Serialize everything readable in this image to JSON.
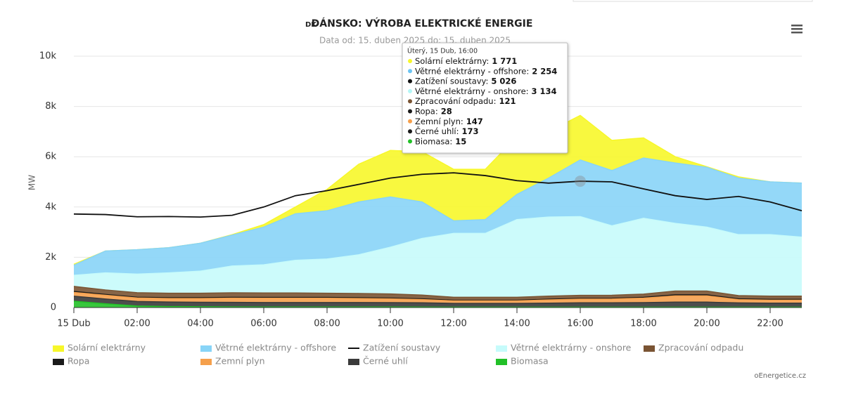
{
  "chart_data": {
    "type": "stacked_area",
    "title_prefix": "DK",
    "title": "DÁNSKO: VÝROBA ELEKTRICKÉ ENERGIE",
    "subtitle": "Data od: 15. duben 2025 do: 15. duben 2025",
    "y_label": "MW",
    "credit": "oEnergetice.cz",
    "x": [
      0,
      1,
      2,
      3,
      4,
      5,
      6,
      7,
      8,
      9,
      10,
      11,
      12,
      13,
      14,
      15,
      16,
      17,
      18,
      19,
      20,
      21,
      22,
      23
    ],
    "xlim": [
      0,
      23
    ],
    "xticks": [
      {
        "value": 0,
        "label": "15 Dub"
      },
      {
        "value": 2,
        "label": "02:00"
      },
      {
        "value": 4,
        "label": "04:00"
      },
      {
        "value": 6,
        "label": "06:00"
      },
      {
        "value": 8,
        "label": "08:00"
      },
      {
        "value": 10,
        "label": "10:00"
      },
      {
        "value": 12,
        "label": "12:00"
      },
      {
        "value": 14,
        "label": "14:00"
      },
      {
        "value": 16,
        "label": "16:00"
      },
      {
        "value": 18,
        "label": "18:00"
      },
      {
        "value": 20,
        "label": "20:00"
      },
      {
        "value": 22,
        "label": "22:00"
      }
    ],
    "ylim": [
      0,
      10000
    ],
    "yticks": [
      0,
      {
        "value": 2000,
        "label": "2k"
      },
      {
        "value": 4000,
        "label": "4k"
      },
      {
        "value": 6000,
        "label": "6k"
      },
      {
        "value": 8000,
        "label": "8k"
      },
      {
        "value": 10000,
        "label": "10k"
      }
    ],
    "grid": true,
    "series": [
      {
        "name": "Solární elektrárny",
        "kind": "area",
        "color": "#f7f72a",
        "values": [
          40,
          0,
          0,
          0,
          0,
          20,
          100,
          270,
          850,
          1500,
          1850,
          2000,
          2050,
          2000,
          2300,
          1850,
          1771,
          1200,
          800,
          250,
          20,
          50,
          0,
          0
        ]
      },
      {
        "name": "Větrné elektrárny - offshore",
        "kind": "area",
        "color": "#88d4f7",
        "values": [
          400,
          870,
          970,
          1000,
          1110,
          1230,
          1500,
          1850,
          1920,
          2100,
          2000,
          1450,
          500,
          550,
          1000,
          1550,
          2254,
          2200,
          2400,
          2400,
          2380,
          2250,
          2100,
          2150
        ]
      },
      {
        "name": "Zatížení soustavy",
        "kind": "line",
        "color": "#111111",
        "values": [
          3720,
          3700,
          3610,
          3620,
          3600,
          3670,
          4000,
          4450,
          4650,
          4900,
          5150,
          5300,
          5360,
          5250,
          5050,
          4950,
          5026,
          5000,
          4720,
          4450,
          4300,
          4420,
          4200,
          3850
        ]
      },
      {
        "name": "Větrné elektrárny - onshore",
        "kind": "area",
        "color": "#c6fbfb",
        "values": [
          440,
          680,
          740,
          810,
          880,
          1065,
          1120,
          1300,
          1360,
          1540,
          1860,
          2254,
          2540,
          2540,
          3090,
          3147,
          3134,
          2761,
          3015,
          2695,
          2545,
          2425,
          2445,
          2345
        ]
      },
      {
        "name": "Zpracování odpadu",
        "kind": "area",
        "color": "#7a5433",
        "values": [
          200,
          180,
          180,
          180,
          180,
          180,
          180,
          180,
          170,
          170,
          165,
          150,
          120,
          120,
          120,
          120,
          121,
          121,
          130,
          150,
          150,
          130,
          130,
          130
        ]
      },
      {
        "name": "Ropa",
        "kind": "area",
        "color": "#1a1a1a",
        "values": [
          40,
          30,
          30,
          30,
          30,
          30,
          30,
          30,
          30,
          30,
          30,
          28,
          25,
          25,
          25,
          28,
          28,
          28,
          30,
          40,
          40,
          30,
          30,
          30
        ]
      },
      {
        "name": "Zemní plyn",
        "kind": "area",
        "color": "#f5a04c",
        "values": [
          150,
          150,
          140,
          140,
          150,
          170,
          170,
          170,
          170,
          160,
          150,
          130,
          100,
          100,
          100,
          130,
          147,
          150,
          180,
          250,
          250,
          130,
          120,
          120
        ]
      },
      {
        "name": "Černé uhlí",
        "kind": "area",
        "color": "#3a3a3a",
        "values": [
          200,
          190,
          180,
          180,
          180,
          180,
          180,
          180,
          180,
          180,
          175,
          170,
          150,
          150,
          150,
          160,
          173,
          175,
          180,
          200,
          200,
          170,
          160,
          160
        ]
      },
      {
        "name": "Biomasa",
        "kind": "area",
        "color": "#22c028",
        "values": [
          250,
          150,
          60,
          40,
          30,
          25,
          20,
          20,
          20,
          20,
          20,
          18,
          15,
          15,
          15,
          15,
          15,
          15,
          15,
          15,
          15,
          15,
          15,
          15
        ]
      }
    ],
    "tooltip": {
      "title": "Úterý, 15 Dub, 16:00",
      "items": [
        {
          "name": "Solární elektrárny",
          "color": "#f7f72a",
          "value": 1771,
          "label": "1 771"
        },
        {
          "name": "Větrné elektrárny - offshore",
          "color": "#6cc4f2",
          "value": 2254,
          "label": "2 254"
        },
        {
          "name": "Zatížení soustavy",
          "color": "#111111",
          "value": 5026,
          "label": "5 026"
        },
        {
          "name": "Větrné elektrárny - onshore",
          "color": "#b4f6f6",
          "value": 3134,
          "label": "3 134"
        },
        {
          "name": "Zpracování odpadu",
          "color": "#7a5433",
          "value": 121,
          "label": "121"
        },
        {
          "name": "Ropa",
          "color": "#1a1a1a",
          "value": 28,
          "label": "28"
        },
        {
          "name": "Zemní plyn",
          "color": "#f5a04c",
          "value": 147,
          "label": "147"
        },
        {
          "name": "Černé uhlí",
          "color": "#1a1a1a",
          "value": 173,
          "label": "173"
        },
        {
          "name": "Biomasa",
          "color": "#22c028",
          "value": 15,
          "label": "15"
        }
      ]
    }
  }
}
